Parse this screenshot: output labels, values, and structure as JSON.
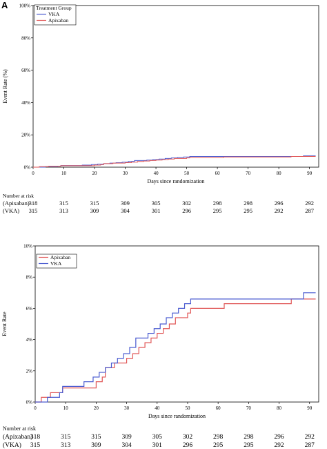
{
  "panel_label": "A",
  "colors": {
    "apixaban": "#e05555",
    "vka": "#4a5bd0"
  },
  "chart_data": [
    {
      "type": "line",
      "title": "",
      "xlabel": "Days since randomization",
      "ylabel": "Event Rate (%)",
      "xlim": [
        0,
        93
      ],
      "ylim": [
        0,
        100
      ],
      "x_ticks": [
        0,
        10,
        20,
        30,
        40,
        50,
        60,
        70,
        80,
        90
      ],
      "y_ticks": [
        0,
        20,
        40,
        60,
        80,
        100
      ],
      "y_tick_labels": [
        "0%",
        "20%",
        "40%",
        "60%",
        "80%",
        "100%"
      ],
      "legend": {
        "title": "Treatment Group",
        "entries": [
          "VKA",
          "Apixaban"
        ],
        "placement": "top-left"
      },
      "series": [
        {
          "name": "VKA",
          "x": [
            0,
            4,
            8,
            9,
            16,
            19,
            21,
            23,
            25,
            27,
            29,
            31,
            33,
            37,
            39,
            41,
            43,
            45,
            47,
            49,
            51,
            72,
            86,
            88,
            92
          ],
          "y": [
            0,
            0.3,
            0.6,
            1.0,
            1.3,
            1.6,
            1.9,
            2.2,
            2.5,
            2.8,
            3.1,
            3.5,
            4.1,
            4.4,
            4.7,
            5.0,
            5.4,
            5.7,
            6.0,
            6.3,
            6.6,
            6.6,
            6.6,
            7.0,
            7.0
          ]
        },
        {
          "name": "Apixaban",
          "x": [
            0,
            2,
            5,
            9,
            20,
            22,
            23,
            26,
            30,
            32,
            34,
            36,
            38,
            40,
            42,
            44,
            46,
            50,
            51,
            60,
            62,
            72,
            84,
            92
          ],
          "y": [
            0,
            0.3,
            0.6,
            0.9,
            1.3,
            1.6,
            2.2,
            2.5,
            2.8,
            3.1,
            3.5,
            3.8,
            4.1,
            4.4,
            4.7,
            5.0,
            5.4,
            5.7,
            6.0,
            6.0,
            6.3,
            6.3,
            6.6,
            6.6
          ]
        }
      ],
      "risk_table": {
        "header": "Number at risk",
        "rows": [
          {
            "label": "(Apixaban)",
            "values": [
              "318",
              "315",
              "315",
              "309",
              "305",
              "302",
              "298",
              "298",
              "296",
              "292"
            ]
          },
          {
            "label": "(VKA)",
            "values": [
              "315",
              "313",
              "309",
              "304",
              "301",
              "296",
              "295",
              "295",
              "292",
              "287"
            ]
          }
        ]
      }
    },
    {
      "type": "line",
      "title": "",
      "xlabel": "Days since randomization",
      "ylabel": "Event Rate",
      "xlim": [
        0,
        93
      ],
      "ylim": [
        0,
        10
      ],
      "x_ticks": [
        0,
        10,
        20,
        30,
        40,
        50,
        60,
        70,
        80,
        90
      ],
      "y_ticks": [
        0,
        2,
        4,
        6,
        8,
        10
      ],
      "y_tick_labels": [
        "0%",
        "2%",
        "4%",
        "6%",
        "8%",
        "10%"
      ],
      "legend": {
        "entries": [
          "Apixaban",
          "VKA"
        ],
        "placement": "top-left"
      },
      "series": [
        {
          "name": "Apixaban",
          "x": [
            0,
            2,
            5,
            9,
            20,
            22,
            23,
            26,
            30,
            32,
            34,
            36,
            38,
            40,
            42,
            44,
            46,
            50,
            51,
            60,
            62,
            72,
            84,
            92
          ],
          "y": [
            0,
            0.3,
            0.6,
            0.9,
            1.3,
            1.6,
            2.2,
            2.5,
            2.8,
            3.1,
            3.5,
            3.8,
            4.1,
            4.4,
            4.7,
            5.0,
            5.4,
            5.7,
            6.0,
            6.0,
            6.3,
            6.3,
            6.6,
            6.6
          ]
        },
        {
          "name": "VKA",
          "x": [
            0,
            4,
            8,
            9,
            16,
            19,
            21,
            23,
            25,
            27,
            29,
            31,
            33,
            37,
            39,
            41,
            43,
            45,
            47,
            49,
            51,
            72,
            86,
            88,
            92
          ],
          "y": [
            0,
            0.3,
            0.6,
            1.0,
            1.3,
            1.6,
            1.9,
            2.2,
            2.5,
            2.8,
            3.1,
            3.5,
            4.1,
            4.4,
            4.7,
            5.0,
            5.4,
            5.7,
            6.0,
            6.3,
            6.6,
            6.6,
            6.6,
            7.0,
            7.0
          ]
        }
      ],
      "risk_table": {
        "header": "Number at risk",
        "rows": [
          {
            "label": "(Apixaban)",
            "values": [
              "318",
              "315",
              "315",
              "309",
              "305",
              "302",
              "298",
              "298",
              "296",
              "292"
            ]
          },
          {
            "label": "(VKA)",
            "values": [
              "315",
              "313",
              "309",
              "304",
              "301",
              "296",
              "295",
              "295",
              "292",
              "287"
            ]
          }
        ]
      }
    }
  ]
}
